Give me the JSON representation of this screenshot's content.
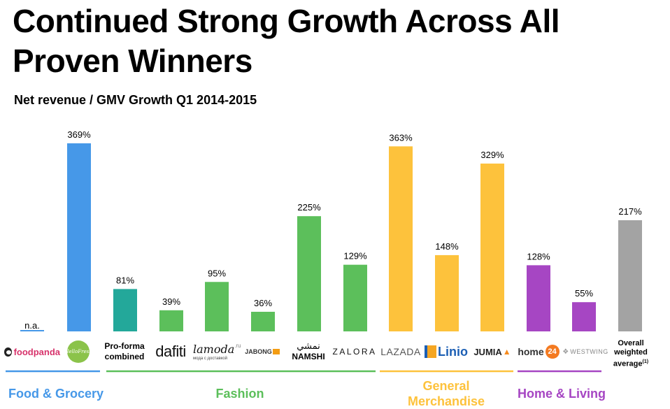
{
  "title": "Continued Strong Growth Across All Proven Winners",
  "subtitle": "Net revenue / GMV Growth Q1 2014-2015",
  "colors": {
    "blue": "#4698E8",
    "teal": "#23A89A",
    "green": "#5CBF5B",
    "yellow": "#FDC23C",
    "purple": "#A646C3",
    "grey": "#A3A3A3"
  },
  "chart_data": {
    "type": "bar",
    "title": "Net revenue / GMV Growth Q1 2014-2015",
    "ylabel": "",
    "xlabel": "",
    "ylim": [
      0,
      380
    ],
    "grid": false,
    "categories": [
      "foodpanda",
      "HelloFresh",
      "Pro-forma combined",
      "dafiti",
      "lamoda",
      "JABONG",
      "NAMSHI",
      "ZALORA",
      "LAZADA",
      "Linio",
      "JUMIA",
      "home24",
      "WESTWING",
      "Overall weighted average(1)"
    ],
    "values": [
      null,
      369,
      81,
      39,
      95,
      36,
      225,
      129,
      363,
      148,
      329,
      128,
      55,
      217
    ],
    "value_labels": [
      "n.a.",
      "369%",
      "81%",
      "39%",
      "95%",
      "36%",
      "225%",
      "129%",
      "363%",
      "148%",
      "329%",
      "128%",
      "55%",
      "217%"
    ],
    "groups": [
      {
        "name": "Food & Grocery",
        "members": [
          "foodpanda",
          "HelloFresh"
        ],
        "color_key": "blue"
      },
      {
        "name": "Fashion",
        "members": [
          "Pro-forma combined",
          "dafiti",
          "lamoda",
          "JABONG",
          "NAMSHI",
          "ZALORA"
        ],
        "color_key": "green"
      },
      {
        "name": "General Merchandise",
        "members": [
          "LAZADA",
          "Linio",
          "JUMIA"
        ],
        "color_key": "yellow"
      },
      {
        "name": "Home & Living",
        "members": [
          "home24",
          "WESTWING"
        ],
        "color_key": "purple"
      },
      {
        "name": "Overall weighted average",
        "members": [
          "Overall weighted average(1)"
        ],
        "color_key": "grey"
      }
    ],
    "bar_color_keys": [
      "blue",
      "blue",
      "teal",
      "green",
      "green",
      "green",
      "green",
      "green",
      "yellow",
      "yellow",
      "yellow",
      "purple",
      "purple",
      "grey"
    ]
  },
  "logos": {
    "foodpanda": "foodpanda",
    "hellofresh": "HelloFresh",
    "proforma_line1": "Pro-forma",
    "proforma_line2": "combined",
    "dafiti": "dafiti",
    "lamoda": "lamoda",
    "lamoda_ru": ".ru",
    "lamoda_tag": "мода с доставкой",
    "jabong": "JABONG",
    "namshi_ar": "نمشي",
    "namshi": "NAMSHI",
    "zalora": "ZALORA",
    "lazada": "LAZADA",
    "linio": "Linio",
    "jumia": "JUMIA",
    "home24_text": "home",
    "home24_num": "24",
    "westwing": "WESTWING",
    "overall_line1": "Overall",
    "overall_line2": "weighted",
    "overall_line3": "average",
    "overall_note": "(1)"
  },
  "group_labels": {
    "food": "Food & Grocery",
    "fashion": "Fashion",
    "general_line1": "General",
    "general_line2": "Merchandise",
    "home": "Home & Living"
  }
}
